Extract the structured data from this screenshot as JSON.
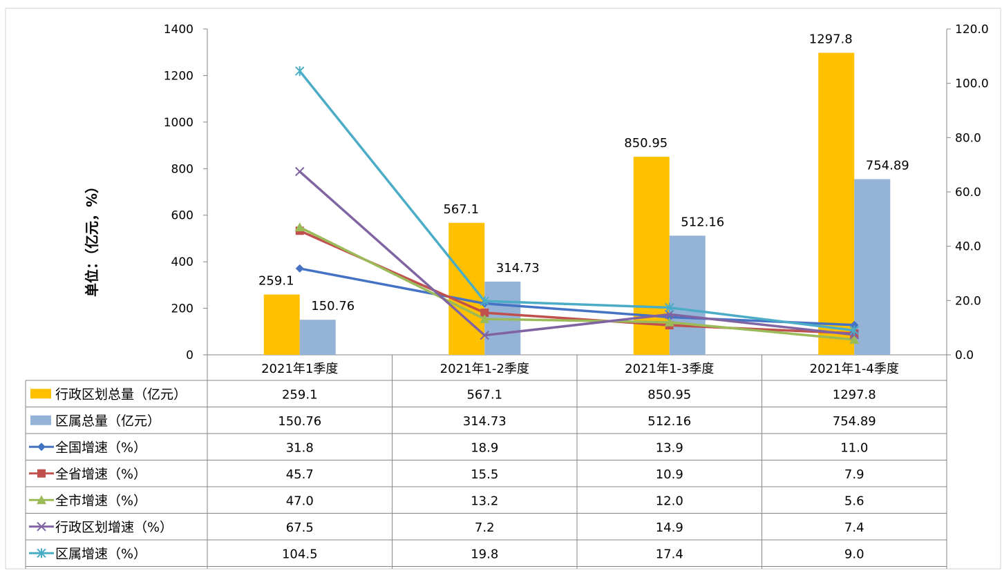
{
  "chart_data": {
    "type": "bar",
    "title": "",
    "ylabel": "单位：（亿元，%）",
    "y2label": "",
    "xlabel": "",
    "ylim": [
      0,
      1400
    ],
    "y2lim": [
      0,
      120
    ],
    "y_ticks": [
      "0",
      "200",
      "400",
      "600",
      "800",
      "1000",
      "1200",
      "1400"
    ],
    "y2_ticks": [
      "0.0",
      "20.0",
      "40.0",
      "60.0",
      "80.0",
      "100.0",
      "120.0"
    ],
    "categories": [
      "2021年1季度",
      "2021年1-2季度",
      "2021年1-3季度",
      "2021年1-4季度"
    ],
    "grid": false,
    "legend": "data-table-below",
    "series": [
      {
        "name": "行政区划总量（亿元）",
        "kind": "bar",
        "axis": "left",
        "color": "#FFC000",
        "marker": "square",
        "values": [
          259.1,
          567.1,
          850.95,
          1297.8
        ],
        "labels": [
          "259.1",
          "567.1",
          "850.95",
          "1297.8"
        ]
      },
      {
        "name": "区属总量（亿元）",
        "kind": "bar",
        "axis": "left",
        "color": "#95B3D7",
        "marker": "square",
        "values": [
          150.76,
          314.73,
          512.16,
          754.89
        ],
        "labels": [
          "150.76",
          "314.73",
          "512.16",
          "754.89"
        ]
      },
      {
        "name": "全国增速（%）",
        "kind": "line",
        "axis": "right",
        "color": "#4472C4",
        "marker": "diamond",
        "values": [
          31.8,
          18.9,
          13.9,
          11.0
        ],
        "labels": [
          "31.8",
          "18.9",
          "13.9",
          "11.0"
        ]
      },
      {
        "name": "全省增速（%）",
        "kind": "line",
        "axis": "right",
        "color": "#C0504D",
        "marker": "square",
        "values": [
          45.7,
          15.5,
          10.9,
          7.9
        ],
        "labels": [
          "45.7",
          "15.5",
          "10.9",
          "7.9"
        ]
      },
      {
        "name": "全市增速（%）",
        "kind": "line",
        "axis": "right",
        "color": "#9BBB59",
        "marker": "triangle",
        "values": [
          47.0,
          13.2,
          12.0,
          5.6
        ],
        "labels": [
          "47.0",
          "13.2",
          "12.0",
          "5.6"
        ]
      },
      {
        "name": "行政区划增速（%）",
        "kind": "line",
        "axis": "right",
        "color": "#8064A2",
        "marker": "x",
        "values": [
          67.5,
          7.2,
          14.9,
          7.4
        ],
        "labels": [
          "67.5",
          "7.2",
          "14.9",
          "7.4"
        ]
      },
      {
        "name": "区属增速（%）",
        "kind": "line",
        "axis": "right",
        "color": "#4BACC6",
        "marker": "star",
        "values": [
          104.5,
          19.8,
          17.4,
          9.0
        ],
        "labels": [
          "104.5",
          "19.8",
          "17.4",
          "9.0"
        ]
      }
    ]
  }
}
